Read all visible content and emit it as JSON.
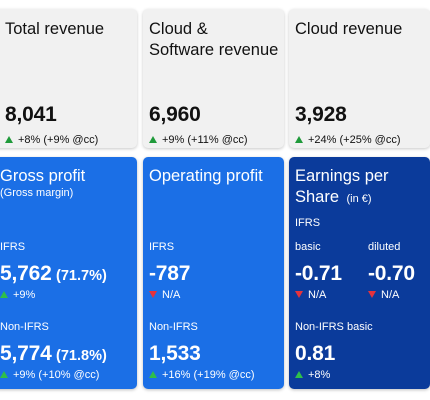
{
  "colors": {
    "light_card": "#f1f1f1",
    "blue_card": "#1b6fe6",
    "navy_card": "#0b3b9b",
    "up": "#2fbf4a",
    "down": "#e5323c"
  },
  "total_revenue": {
    "title": "Total revenue",
    "value": "8,041",
    "change": "+8% (+9% @cc)",
    "trend_icon": "triangle-up"
  },
  "cloud_software_revenue": {
    "title_line1": "Cloud &",
    "title_line2": "Software revenue",
    "value": "6,960",
    "change": "+9% (+11% @cc)",
    "trend_icon": "triangle-up"
  },
  "cloud_revenue": {
    "title": "Cloud revenue",
    "value": "3,928",
    "change": "+24% (+25% @cc)",
    "trend_icon": "triangle-up"
  },
  "gross_profit": {
    "title": "Gross profit",
    "subtitle": "(Gross margin)",
    "ifrs_label": "IFRS",
    "ifrs_value": "5,762",
    "ifrs_margin": "(71.7%)",
    "ifrs_change": "+9%",
    "non_ifrs_label": "Non-IFRS",
    "non_ifrs_value": "5,774",
    "non_ifrs_margin": "(71.8%)",
    "non_ifrs_change": "+9% (+10% @cc)"
  },
  "operating_profit": {
    "title": "Operating profit",
    "ifrs_label": "IFRS",
    "ifrs_value": "-787",
    "ifrs_change": "N/A",
    "non_ifrs_label": "Non-IFRS",
    "non_ifrs_value": "1,533",
    "non_ifrs_change": "+16% (+19% @cc)"
  },
  "eps": {
    "title_line1": "Earnings per",
    "title_line2": "Share",
    "unit": "(in €)",
    "ifrs_label": "IFRS",
    "basic_label": "basic",
    "diluted_label": "diluted",
    "basic_value": "-0.71",
    "diluted_value": "-0.70",
    "basic_change": "N/A",
    "diluted_change": "N/A",
    "non_ifrs_label": "Non-IFRS basic",
    "non_ifrs_value": "0.81",
    "non_ifrs_change": "+8%"
  }
}
